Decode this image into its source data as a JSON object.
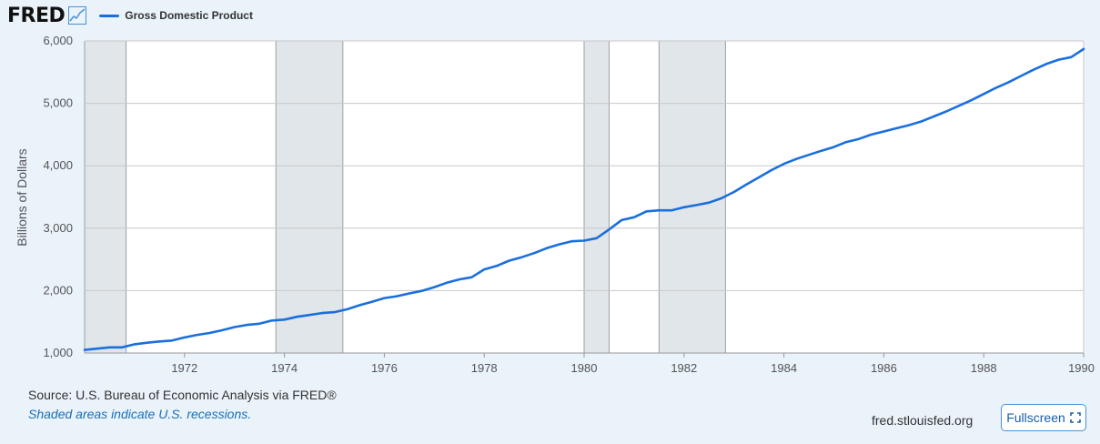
{
  "brand": {
    "logo_text": "FRED",
    "logo_icon": "trend-chart-icon"
  },
  "legend": {
    "series_label": "Gross Domestic Product",
    "color": "#1a6fde"
  },
  "footer": {
    "source": "Source: U.S. Bureau of Economic Analysis via FRED®",
    "note": "Shaded areas indicate U.S. recessions.",
    "site": "fred.stlouisfed.org",
    "fullscreen_label": "Fullscreen",
    "fullscreen_icon": "expand-icon"
  },
  "chart_data": {
    "type": "line",
    "ylabel": "Billions of Dollars",
    "xlim": [
      1970.0,
      1990.0
    ],
    "ylim": [
      1000,
      6000
    ],
    "xticks": [
      1972,
      1974,
      1976,
      1978,
      1980,
      1982,
      1984,
      1986,
      1988,
      1990
    ],
    "yticks": [
      1000,
      2000,
      3000,
      4000,
      5000,
      6000
    ],
    "ytick_labels": [
      "1,000",
      "2,000",
      "3,000",
      "4,000",
      "5,000",
      "6,000"
    ],
    "grid": true,
    "recessions": [
      [
        1970.0,
        1970.83
      ],
      [
        1973.83,
        1975.17
      ],
      [
        1980.0,
        1980.5
      ],
      [
        1981.5,
        1982.83
      ]
    ],
    "series": [
      {
        "name": "Gross Domestic Product",
        "color": "#1a6fde",
        "x": [
          1970.0,
          1970.25,
          1970.5,
          1970.75,
          1971.0,
          1971.25,
          1971.5,
          1971.75,
          1972.0,
          1972.25,
          1972.5,
          1972.75,
          1973.0,
          1973.25,
          1973.5,
          1973.75,
          1974.0,
          1974.25,
          1974.5,
          1974.75,
          1975.0,
          1975.25,
          1975.5,
          1975.75,
          1976.0,
          1976.25,
          1976.5,
          1976.75,
          1977.0,
          1977.25,
          1977.5,
          1977.75,
          1978.0,
          1978.25,
          1978.5,
          1978.75,
          1979.0,
          1979.25,
          1979.5,
          1979.75,
          1980.0,
          1980.25,
          1980.5,
          1980.75,
          1981.0,
          1981.25,
          1981.5,
          1981.75,
          1982.0,
          1982.25,
          1982.5,
          1982.75,
          1983.0,
          1983.25,
          1983.5,
          1983.75,
          1984.0,
          1984.25,
          1984.5,
          1984.75,
          1985.0,
          1985.25,
          1985.5,
          1985.75,
          1986.0,
          1986.25,
          1986.5,
          1986.75,
          1987.0,
          1987.25,
          1987.5,
          1987.75,
          1988.0,
          1988.25,
          1988.5,
          1988.75,
          1989.0,
          1989.25,
          1989.5,
          1989.75,
          1990.0
        ],
        "values": [
          1050,
          1070,
          1090,
          1090,
          1140,
          1165,
          1185,
          1200,
          1250,
          1290,
          1320,
          1365,
          1415,
          1450,
          1470,
          1520,
          1535,
          1580,
          1610,
          1640,
          1655,
          1700,
          1765,
          1820,
          1880,
          1910,
          1955,
          1995,
          2055,
          2125,
          2180,
          2215,
          2340,
          2395,
          2480,
          2535,
          2600,
          2680,
          2740,
          2790,
          2800,
          2840,
          2980,
          3130,
          3175,
          3270,
          3285,
          3285,
          3335,
          3370,
          3410,
          3480,
          3580,
          3700,
          3815,
          3930,
          4030,
          4110,
          4175,
          4240,
          4300,
          4380,
          4430,
          4500,
          4550,
          4600,
          4650,
          4710,
          4790,
          4870,
          4960,
          5050,
          5150,
          5250,
          5340,
          5440,
          5540,
          5630,
          5700,
          5740,
          5870
        ]
      }
    ]
  }
}
